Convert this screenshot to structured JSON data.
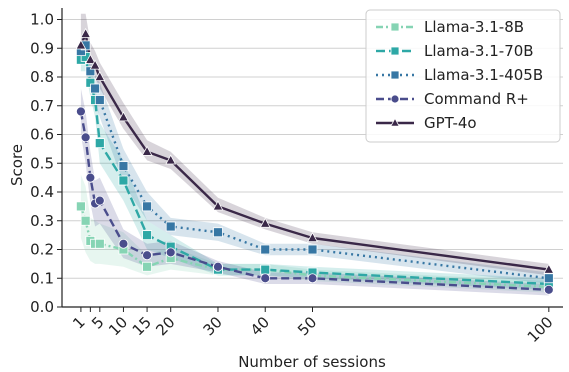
{
  "chart_data": {
    "type": "line",
    "title": "",
    "xlabel": "Number of sessions",
    "ylabel": "Score",
    "xlim": [
      -3,
      103
    ],
    "ylim": [
      0,
      1.04
    ],
    "xticks": [
      1,
      3,
      5,
      10,
      15,
      20,
      30,
      40,
      50,
      100
    ],
    "xtick_labels": [
      "1",
      "",
      "5",
      "10",
      "15",
      "20",
      "30",
      "40",
      "50",
      "100"
    ],
    "yticks": [
      0.0,
      0.1,
      0.2,
      0.3,
      0.4,
      0.5,
      0.6,
      0.7,
      0.8,
      0.9,
      1.0
    ],
    "ytick_labels": [
      "0.0",
      "0.1",
      "0.2",
      "0.3",
      "0.4",
      "0.5",
      "0.6",
      "0.7",
      "0.8",
      "0.9",
      "1.0"
    ],
    "grid": "horizontal",
    "legend_position": "top-right",
    "series": [
      {
        "name": "Llama-3.1-8B",
        "color": "#86d4b4",
        "marker": "square",
        "dash": "7 3 2 3",
        "x": [
          1,
          2,
          3,
          4,
          5,
          10,
          15,
          20,
          30,
          40,
          50,
          100
        ],
        "y": [
          0.35,
          0.3,
          0.23,
          0.22,
          0.22,
          0.2,
          0.14,
          0.17,
          0.13,
          0.13,
          0.11,
          0.07
        ],
        "band_low": [
          0.24,
          0.19,
          0.16,
          0.15,
          0.15,
          0.14,
          0.11,
          0.13,
          0.11,
          0.11,
          0.09,
          0.05
        ],
        "band_high": [
          0.46,
          0.42,
          0.31,
          0.3,
          0.29,
          0.26,
          0.18,
          0.21,
          0.15,
          0.15,
          0.13,
          0.09
        ]
      },
      {
        "name": "Llama-3.1-70B",
        "color": "#2ea8a6",
        "marker": "square",
        "dash": "9 4",
        "x": [
          1,
          2,
          3,
          4,
          5,
          10,
          15,
          20,
          30,
          40,
          50,
          100
        ],
        "y": [
          0.86,
          0.87,
          0.78,
          0.72,
          0.57,
          0.44,
          0.25,
          0.21,
          0.13,
          0.13,
          0.12,
          0.08
        ],
        "band_low": [
          0.82,
          0.82,
          0.73,
          0.66,
          0.5,
          0.37,
          0.2,
          0.17,
          0.11,
          0.11,
          0.1,
          0.06
        ],
        "band_high": [
          0.9,
          0.92,
          0.83,
          0.78,
          0.64,
          0.51,
          0.3,
          0.25,
          0.15,
          0.15,
          0.14,
          0.1
        ]
      },
      {
        "name": "Llama-3.1-405B",
        "color": "#3777a4",
        "marker": "square",
        "dash": "2 4",
        "x": [
          1,
          2,
          3,
          4,
          5,
          10,
          15,
          20,
          30,
          40,
          50,
          100
        ],
        "y": [
          0.89,
          0.91,
          0.82,
          0.76,
          0.72,
          0.49,
          0.35,
          0.28,
          0.26,
          0.2,
          0.2,
          0.1
        ],
        "band_low": [
          0.85,
          0.87,
          0.77,
          0.71,
          0.66,
          0.43,
          0.3,
          0.25,
          0.23,
          0.18,
          0.18,
          0.08
        ],
        "band_high": [
          0.93,
          0.95,
          0.87,
          0.81,
          0.78,
          0.55,
          0.4,
          0.31,
          0.29,
          0.22,
          0.22,
          0.12
        ]
      },
      {
        "name": "Command R+",
        "color": "#4a4d8c",
        "marker": "circle",
        "dash": "8 4",
        "x": [
          1,
          2,
          3,
          4,
          5,
          10,
          15,
          20,
          30,
          40,
          50,
          100
        ],
        "y": [
          0.68,
          0.59,
          0.45,
          0.36,
          0.37,
          0.22,
          0.18,
          0.19,
          0.14,
          0.1,
          0.1,
          0.06
        ],
        "band_low": [
          0.6,
          0.5,
          0.36,
          0.28,
          0.29,
          0.17,
          0.14,
          0.15,
          0.12,
          0.08,
          0.08,
          0.04
        ],
        "band_high": [
          0.76,
          0.68,
          0.54,
          0.44,
          0.45,
          0.27,
          0.22,
          0.23,
          0.16,
          0.12,
          0.12,
          0.08
        ]
      },
      {
        "name": "GPT-4o",
        "color": "#3a2848",
        "marker": "triangle",
        "dash": "",
        "x": [
          1,
          2,
          3,
          4,
          5,
          10,
          15,
          20,
          30,
          40,
          50,
          100
        ],
        "y": [
          0.91,
          0.95,
          0.86,
          0.84,
          0.8,
          0.66,
          0.54,
          0.51,
          0.35,
          0.29,
          0.24,
          0.13
        ],
        "band_low": [
          0.87,
          0.91,
          0.82,
          0.8,
          0.76,
          0.62,
          0.51,
          0.48,
          0.33,
          0.27,
          0.22,
          0.11
        ],
        "band_high": [
          1.02,
          1.02,
          0.92,
          0.89,
          0.85,
          0.71,
          0.58,
          0.54,
          0.38,
          0.31,
          0.26,
          0.15
        ]
      }
    ]
  }
}
